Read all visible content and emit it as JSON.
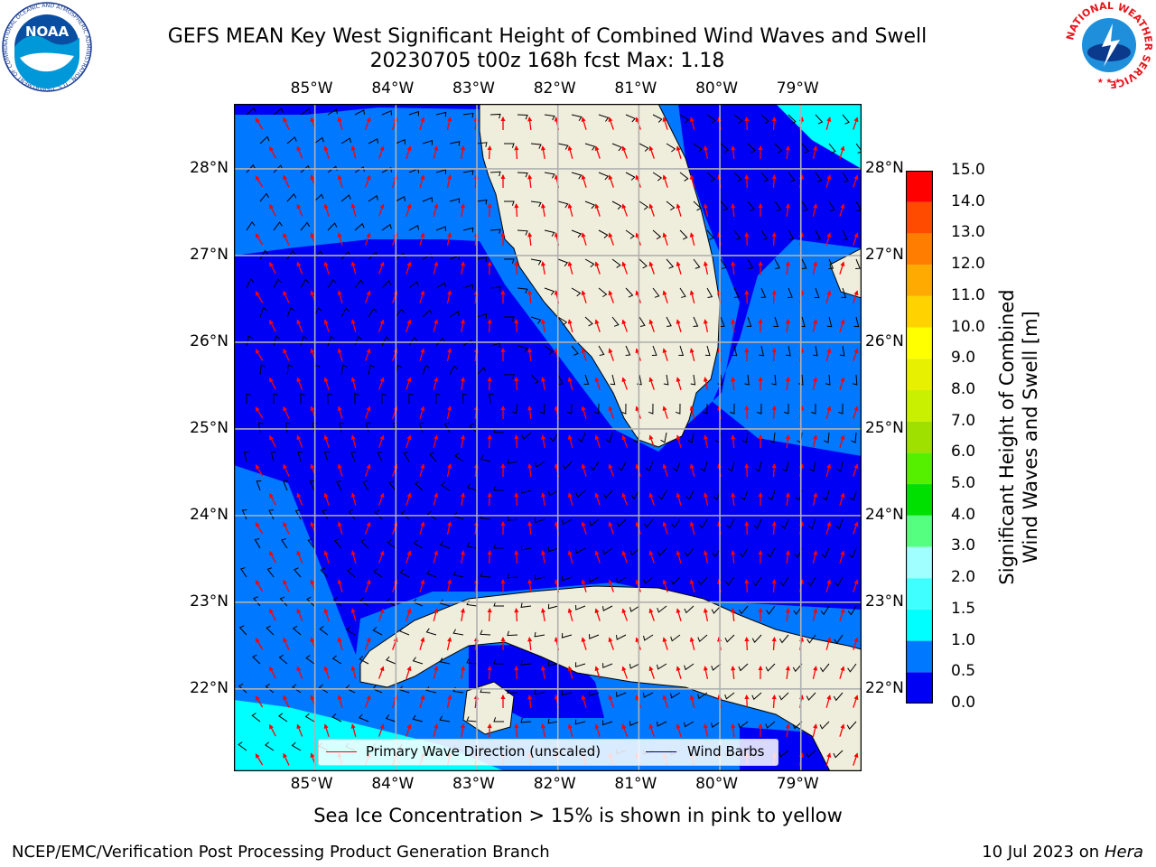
{
  "header": {
    "title_line1": "GEFS MEAN Key West Significant Height of Combined Wind Waves and Swell",
    "title_line2": "20230705 t00z 168h fcst   Max: 1.18",
    "noaa_logo_text": "NOAA",
    "noaa_ring_text": "NATIONAL OCEANIC AND ATMOSPHERIC ADMINISTRATION · U.S. DEPARTMENT OF COMMERCE",
    "nws_ring_text": "NATIONAL WEATHER SERVICE"
  },
  "map": {
    "lon_labels": [
      "85°W",
      "84°W",
      "83°W",
      "82°W",
      "81°W",
      "80°W",
      "79°W"
    ],
    "lat_labels": [
      "28°N",
      "27°N",
      "26°N",
      "25°N",
      "24°N",
      "23°N",
      "22°N"
    ],
    "extent": {
      "lon": [
        -86.0,
        -78.25
      ],
      "lat": [
        21.05,
        28.75
      ]
    },
    "colors": {
      "sea_0_05": "#0000f5",
      "sea_05_10": "#0078ff",
      "sea_10_15": "#00ffff",
      "land": "#efeedc"
    }
  },
  "legend": {
    "primary_wave_label": "Primary Wave Direction (unscaled)",
    "wind_barbs_label": "Wind Barbs",
    "primary_wave_color": "#ff0000",
    "wind_barbs_color": "#000080"
  },
  "colorbar": {
    "title_line1": "Significant Height of Combined",
    "title_line2": "Wind Waves and Swell [m]",
    "levels": [
      "0.0",
      "0.5",
      "1.0",
      "1.5",
      "2.0",
      "3.0",
      "4.0",
      "5.0",
      "6.0",
      "7.0",
      "8.0",
      "9.0",
      "10.0",
      "11.0",
      "12.0",
      "13.0",
      "14.0",
      "15.0"
    ],
    "colors": [
      "#0000f5",
      "#0078ff",
      "#00ffff",
      "#40ffff",
      "#a0ffff",
      "#55ff7f",
      "#00e000",
      "#55f000",
      "#a0e000",
      "#c8f000",
      "#e6f000",
      "#ffff00",
      "#ffd200",
      "#ffaa00",
      "#ff7d00",
      "#ff4b00",
      "#ff0000"
    ]
  },
  "notes": {
    "sea_ice_note": "Sea Ice Concentration > 15% is shown in pink to yellow",
    "credit_left": "NCEP/EMC/Verification Post Processing Product Generation Branch",
    "date_text": "10 Jul 2023 on",
    "host_name": "Hera"
  }
}
